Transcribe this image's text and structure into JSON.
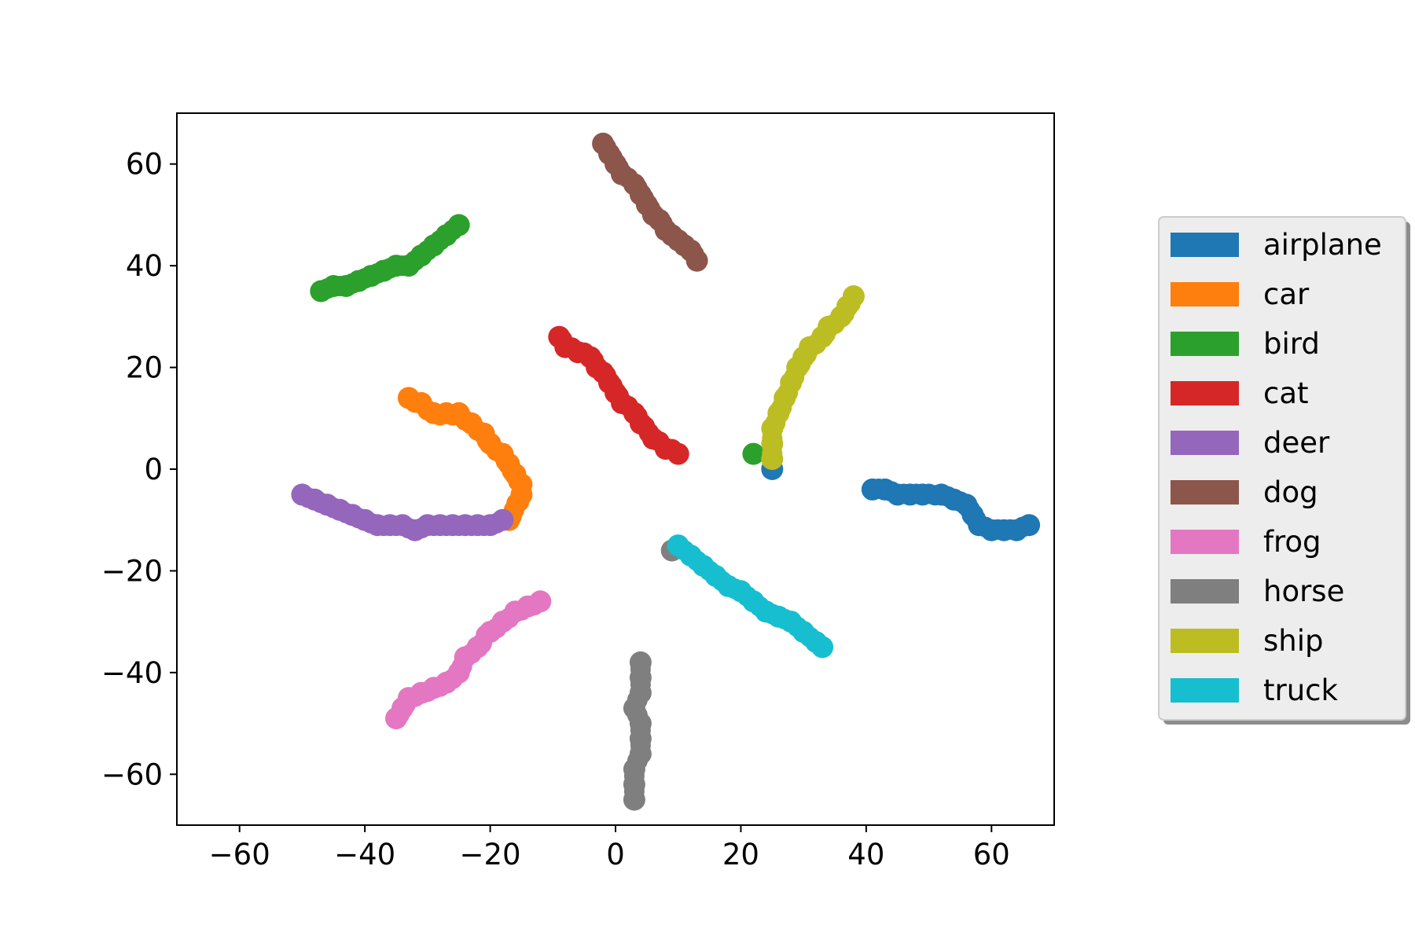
{
  "chart_data": {
    "type": "scatter",
    "title": "",
    "xlabel": "",
    "ylabel": "",
    "xlim": [
      -70,
      70
    ],
    "ylim": [
      -70,
      70
    ],
    "xticks": [
      -60,
      -40,
      -20,
      0,
      20,
      40,
      60
    ],
    "yticks": [
      -60,
      -40,
      -20,
      0,
      20,
      40,
      60
    ],
    "xtick_labels": [
      "−60",
      "−40",
      "−20",
      "0",
      "20",
      "40",
      "60"
    ],
    "ytick_labels": [
      "−60",
      "−40",
      "−20",
      "0",
      "20",
      "40",
      "60"
    ],
    "grid": false,
    "legend_position": "outside-right",
    "series": [
      {
        "name": "airplane",
        "color": "#1f77b4",
        "points": [
          [
            41,
            -4
          ],
          [
            43,
            -4
          ],
          [
            45,
            -5
          ],
          [
            47,
            -5
          ],
          [
            49,
            -5
          ],
          [
            52,
            -5
          ],
          [
            54,
            -6
          ],
          [
            56,
            -7
          ],
          [
            57,
            -9
          ],
          [
            58,
            -11
          ],
          [
            60,
            -12
          ],
          [
            62,
            -12
          ],
          [
            64,
            -12
          ],
          [
            66,
            -11
          ],
          [
            25,
            0
          ]
        ]
      },
      {
        "name": "car",
        "color": "#ff7f0e",
        "points": [
          [
            -33,
            14
          ],
          [
            -31,
            13
          ],
          [
            -29,
            11
          ],
          [
            -27,
            11
          ],
          [
            -25,
            11
          ],
          [
            -23,
            9
          ],
          [
            -21,
            7
          ],
          [
            -20,
            5
          ],
          [
            -18,
            3
          ],
          [
            -17,
            1
          ],
          [
            -16,
            -1
          ],
          [
            -15,
            -3
          ],
          [
            -15,
            -5
          ],
          [
            -17,
            -10
          ]
        ]
      },
      {
        "name": "bird",
        "color": "#2ca02c",
        "points": [
          [
            -47,
            35
          ],
          [
            -45,
            36
          ],
          [
            -43,
            36
          ],
          [
            -41,
            37
          ],
          [
            -39,
            38
          ],
          [
            -37,
            39
          ],
          [
            -35,
            40
          ],
          [
            -33,
            40
          ],
          [
            -31,
            42
          ],
          [
            -29,
            44
          ],
          [
            -27,
            46
          ],
          [
            -25,
            48
          ],
          [
            22,
            3
          ]
        ]
      },
      {
        "name": "cat",
        "color": "#d62728",
        "points": [
          [
            -9,
            26
          ],
          [
            -8,
            24
          ],
          [
            -6,
            23
          ],
          [
            -4,
            22
          ],
          [
            -3,
            20
          ],
          [
            -2,
            19
          ],
          [
            -1,
            17
          ],
          [
            0,
            15
          ],
          [
            1,
            13
          ],
          [
            3,
            11
          ],
          [
            4,
            9
          ],
          [
            6,
            6
          ],
          [
            8,
            4
          ],
          [
            10,
            3
          ]
        ]
      },
      {
        "name": "deer",
        "color": "#9467bd",
        "points": [
          [
            -50,
            -5
          ],
          [
            -48,
            -6
          ],
          [
            -46,
            -7
          ],
          [
            -44,
            -8
          ],
          [
            -42,
            -9
          ],
          [
            -40,
            -10
          ],
          [
            -38,
            -11
          ],
          [
            -36,
            -11
          ],
          [
            -34,
            -11
          ],
          [
            -32,
            -12
          ],
          [
            -30,
            -11
          ],
          [
            -28,
            -11
          ],
          [
            -26,
            -11
          ],
          [
            -24,
            -11
          ],
          [
            -22,
            -11
          ],
          [
            -20,
            -11
          ],
          [
            -18,
            -10
          ]
        ]
      },
      {
        "name": "dog",
        "color": "#8c564b",
        "points": [
          [
            -2,
            64
          ],
          [
            -1,
            62
          ],
          [
            0,
            60
          ],
          [
            1,
            58
          ],
          [
            3,
            56
          ],
          [
            4,
            54
          ],
          [
            5,
            52
          ],
          [
            6,
            50
          ],
          [
            7,
            49
          ],
          [
            8,
            47
          ],
          [
            9,
            46
          ],
          [
            10,
            45
          ],
          [
            11,
            44
          ],
          [
            12,
            43
          ],
          [
            13,
            41
          ]
        ]
      },
      {
        "name": "frog",
        "color": "#e377c2",
        "points": [
          [
            -35,
            -49
          ],
          [
            -34,
            -47
          ],
          [
            -33,
            -45
          ],
          [
            -31,
            -44
          ],
          [
            -29,
            -43
          ],
          [
            -27,
            -42
          ],
          [
            -25,
            -40
          ],
          [
            -24,
            -37
          ],
          [
            -22,
            -35
          ],
          [
            -20,
            -32
          ],
          [
            -18,
            -30
          ],
          [
            -16,
            -28
          ],
          [
            -14,
            -27
          ],
          [
            -12,
            -26
          ]
        ]
      },
      {
        "name": "horse",
        "color": "#7f7f7f",
        "points": [
          [
            4,
            -38
          ],
          [
            4,
            -41
          ],
          [
            4,
            -44
          ],
          [
            3,
            -47
          ],
          [
            4,
            -50
          ],
          [
            4,
            -53
          ],
          [
            4,
            -56
          ],
          [
            3,
            -59
          ],
          [
            3,
            -62
          ],
          [
            3,
            -65
          ],
          [
            9,
            -16
          ]
        ]
      },
      {
        "name": "ship",
        "color": "#bcbd22",
        "points": [
          [
            25,
            2
          ],
          [
            25,
            5
          ],
          [
            25,
            8
          ],
          [
            26,
            11
          ],
          [
            27,
            14
          ],
          [
            28,
            17
          ],
          [
            29,
            20
          ],
          [
            30,
            22
          ],
          [
            31,
            24
          ],
          [
            33,
            26
          ],
          [
            34,
            28
          ],
          [
            36,
            30
          ],
          [
            37,
            32
          ],
          [
            38,
            34
          ]
        ]
      },
      {
        "name": "truck",
        "color": "#17becf",
        "points": [
          [
            10,
            -15
          ],
          [
            12,
            -17
          ],
          [
            14,
            -19
          ],
          [
            16,
            -21
          ],
          [
            18,
            -23
          ],
          [
            20,
            -24
          ],
          [
            22,
            -26
          ],
          [
            24,
            -28
          ],
          [
            26,
            -29
          ],
          [
            28,
            -30
          ],
          [
            30,
            -32
          ],
          [
            32,
            -34
          ],
          [
            33,
            -35
          ]
        ]
      }
    ]
  }
}
